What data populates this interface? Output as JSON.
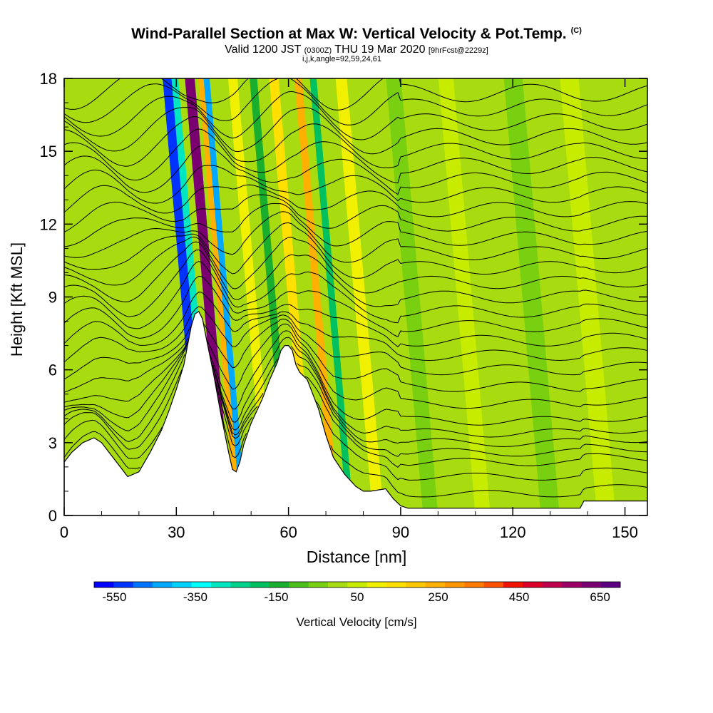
{
  "header": {
    "title": "Wind-Parallel Section at Max W: Vertical Velocity & Pot.Temp.",
    "copyright": "(C)",
    "valid_prefix": "Valid 1200 JST",
    "valid_z": "(0300Z)",
    "valid_date": "THU 19 Mar 2020",
    "forecast": "[9hrFcst@2229z]",
    "indices": "i,j,k,angle=92,59,24,61"
  },
  "chart_data": {
    "type": "heatmap",
    "title": "Wind-Parallel Section at Max W: Vertical Velocity & Pot.Temp.",
    "xlabel": "Distance [nm]",
    "ylabel": "Height [Kft MSL]",
    "xlim": [
      0,
      156
    ],
    "ylim": [
      0,
      18
    ],
    "x_ticks": [
      0,
      30,
      60,
      90,
      120,
      150
    ],
    "y_ticks": [
      0,
      3,
      6,
      9,
      12,
      15,
      18
    ],
    "x_tick_labels": [
      "0",
      "30",
      "60",
      "90",
      "120",
      "150"
    ],
    "y_tick_labels": [
      "0",
      "3",
      "6",
      "9",
      "12",
      "15",
      "18"
    ],
    "terrain_profile": {
      "x": [
        0,
        2,
        5,
        8,
        10,
        13,
        15,
        17,
        20,
        23,
        26,
        28,
        30,
        32,
        33,
        34,
        35,
        36,
        37,
        38,
        40,
        42,
        44,
        45,
        46,
        47,
        48,
        50,
        53,
        55,
        57,
        58,
        59,
        60,
        61,
        62,
        63,
        65,
        68,
        70,
        72,
        75,
        78,
        80,
        82,
        86,
        88,
        90,
        92,
        95,
        100,
        110,
        120,
        130,
        138,
        139,
        145,
        150,
        156
      ],
      "height_kft": [
        2.2,
        2.6,
        3.0,
        3.2,
        3.0,
        2.4,
        2.0,
        1.6,
        1.8,
        2.6,
        3.5,
        4.3,
        5.2,
        6.2,
        7.0,
        7.8,
        8.3,
        8.4,
        8.1,
        7.3,
        5.8,
        4.1,
        2.6,
        1.9,
        1.8,
        2.2,
        2.9,
        3.8,
        4.8,
        5.6,
        6.3,
        6.8,
        7.0,
        7.0,
        6.8,
        6.2,
        5.9,
        5.6,
        4.4,
        3.3,
        2.4,
        1.7,
        1.2,
        1.0,
        1.0,
        1.1,
        0.7,
        0.4,
        0.3,
        0.3,
        0.3,
        0.3,
        0.3,
        0.3,
        0.3,
        0.6,
        0.6,
        0.6,
        0.6
      ]
    },
    "vertical_velocity_bands_cm_s": [
      {
        "x_center": 37.5,
        "width_nm": 2.5,
        "w": -520
      },
      {
        "x_center": 39.5,
        "width_nm": 1.8,
        "w": -300
      },
      {
        "x_center": 43.5,
        "width_nm": 2.6,
        "w": 650
      },
      {
        "x_center": 46.5,
        "width_nm": 1.5,
        "w": 250
      },
      {
        "x_center": 48.0,
        "width_nm": 1.6,
        "w": -420
      },
      {
        "x_center": 55.0,
        "width_nm": 2.5,
        "w": 100
      },
      {
        "x_center": 60.5,
        "width_nm": 2.0,
        "w": -150
      },
      {
        "x_center": 66.0,
        "width_nm": 2.5,
        "w": 150
      },
      {
        "x_center": 72.5,
        "width_nm": 2.0,
        "w": 250
      },
      {
        "x_center": 76.5,
        "width_nm": 1.8,
        "w": -200
      },
      {
        "x_center": 84.0,
        "width_nm": 3.0,
        "w": 120
      },
      {
        "x_center": 98.0,
        "width_nm": 4.0,
        "w": -50
      },
      {
        "x_center": 112.0,
        "width_nm": 4.0,
        "w": 60
      },
      {
        "x_center": 130.0,
        "width_nm": 5.0,
        "w": -50
      },
      {
        "x_center": 145.0,
        "width_nm": 5.0,
        "w": 60
      }
    ],
    "theta_contour_heights_kft_far_field": [
      0.9,
      1.6,
      2.2,
      2.6,
      3.0,
      3.4,
      3.9,
      4.6,
      5.3,
      6.0,
      6.6,
      7.2,
      7.8,
      8.4,
      9.0,
      9.6,
      10.2,
      10.8,
      11.4,
      12.0,
      12.6,
      13.2,
      13.8,
      14.4,
      15.0,
      15.6,
      16.2,
      16.8,
      17.4
    ],
    "colorbar": {
      "label": "Vertical Velocity [cm/s]",
      "tick_labels": [
        "-550",
        "-350",
        "-150",
        "50",
        "250",
        "450",
        "650"
      ],
      "tick_values": [
        -550,
        -350,
        -150,
        50,
        250,
        450,
        650
      ],
      "colors": [
        "#0000ff",
        "#0033ff",
        "#0073ff",
        "#00a8ff",
        "#00d2ff",
        "#00ffff",
        "#00e6c0",
        "#00d28c",
        "#00c060",
        "#1aae2e",
        "#4cbe1a",
        "#78d010",
        "#a8dc10",
        "#c8ec00",
        "#f0f000",
        "#ffe000",
        "#ffc800",
        "#ffb000",
        "#ff9600",
        "#ff7800",
        "#ff5000",
        "#f01400",
        "#dc0028",
        "#c0004c",
        "#9c0064",
        "#7a0072",
        "#5c0082"
      ]
    }
  }
}
